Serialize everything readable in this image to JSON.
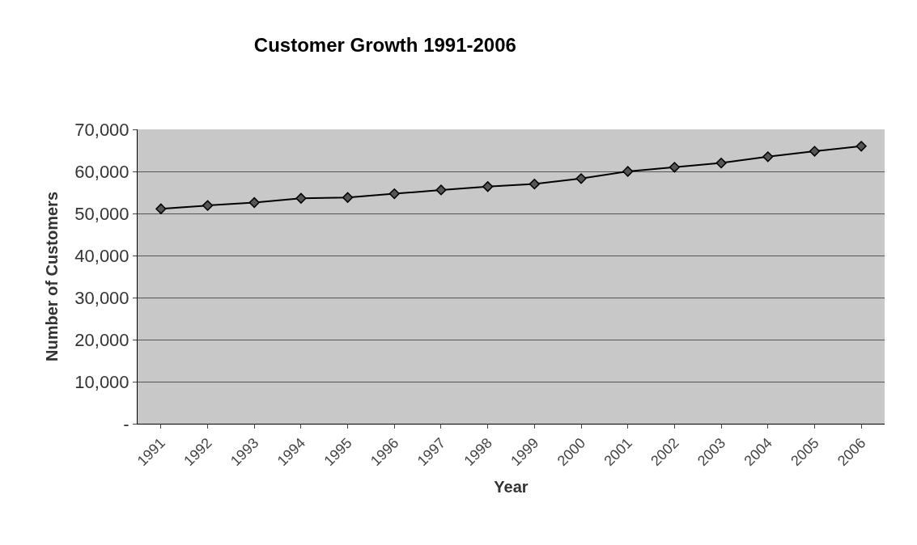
{
  "chart_data": {
    "type": "line",
    "title": "Customer Growth 1991-2006",
    "xlabel": "Year",
    "ylabel": "Number of Customers",
    "categories": [
      "1991",
      "1992",
      "1993",
      "1994",
      "1995",
      "1996",
      "1997",
      "1998",
      "1999",
      "2000",
      "2001",
      "2002",
      "2003",
      "2004",
      "2005",
      "2006"
    ],
    "series": [
      {
        "color": "#000000",
        "values": [
          51100,
          51900,
          52600,
          53600,
          53800,
          54700,
          55600,
          56400,
          57000,
          58300,
          60000,
          61000,
          62000,
          63500,
          64800,
          66000
        ]
      }
    ],
    "ylim": [
      0,
      70000
    ],
    "yticks": [
      {
        "value": 0,
        "label": "-"
      },
      {
        "value": 10000,
        "label": "10,000"
      },
      {
        "value": 20000,
        "label": "20,000"
      },
      {
        "value": 30000,
        "label": "30,000"
      },
      {
        "value": 40000,
        "label": "40,000"
      },
      {
        "value": 50000,
        "label": "50,000"
      },
      {
        "value": 60000,
        "label": "60,000"
      },
      {
        "value": 70000,
        "label": "70,000"
      }
    ],
    "grid": "y",
    "marker": "diamond",
    "line_style": "solid"
  }
}
